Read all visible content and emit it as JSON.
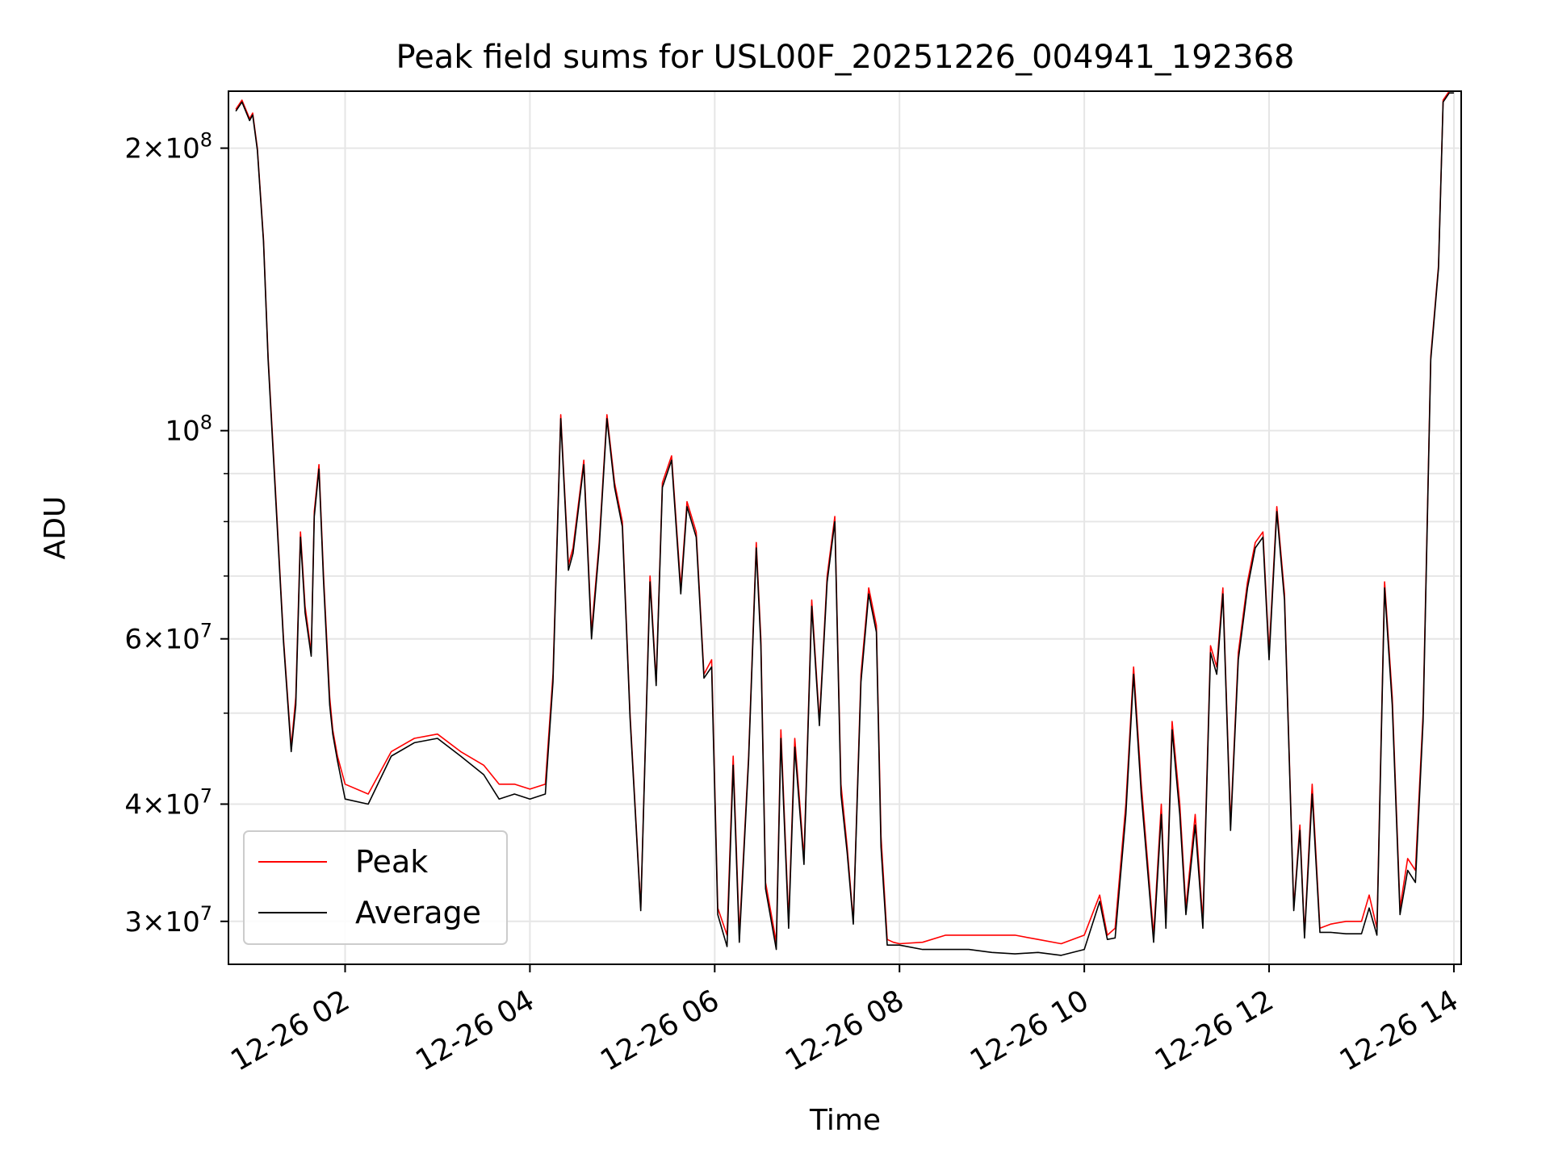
{
  "chart_data": {
    "type": "line",
    "title": "Peak field sums for USL00F_20251226_004941_192368",
    "xlabel": "Time",
    "ylabel": "ADU",
    "x_axis": {
      "kind": "datetime",
      "range": [
        "2025-12-26 00:49",
        "2025-12-26 14:00"
      ],
      "ticks": [
        "12-26 02",
        "12-26 04",
        "12-26 06",
        "12-26 08",
        "12-26 10",
        "12-26 12",
        "12-26 14"
      ],
      "tick_hours": [
        2,
        4,
        6,
        8,
        10,
        12,
        14
      ],
      "tick_rotation_deg": 30
    },
    "y_axis": {
      "scale": "log",
      "range": [
        27000000,
        230000000
      ],
      "major_ticks": [
        {
          "value": 30000000,
          "mantissa": "3",
          "exp": "7"
        },
        {
          "value": 40000000,
          "mantissa": "4",
          "exp": "7"
        },
        {
          "value": 60000000,
          "mantissa": "6",
          "exp": "7"
        },
        {
          "value": 100000000,
          "mantissa": "",
          "exp": "8"
        },
        {
          "value": 200000000,
          "mantissa": "2",
          "exp": "8"
        }
      ],
      "minor_grid": [
        50000000,
        70000000,
        80000000,
        90000000
      ]
    },
    "grid": true,
    "legend": {
      "location": "lower-left"
    },
    "series": [
      {
        "name": "Peak",
        "color": "#ff0000",
        "x": [
          "2025-12-26 00:49",
          "2025-12-26 00:53",
          "2025-12-26 00:58",
          "2025-12-26 01:00",
          "2025-12-26 01:03",
          "2025-12-26 01:07",
          "2025-12-26 01:10",
          "2025-12-26 01:15",
          "2025-12-26 01:20",
          "2025-12-26 01:25",
          "2025-12-26 01:28",
          "2025-12-26 01:31",
          "2025-12-26 01:34",
          "2025-12-26 01:38",
          "2025-12-26 01:40",
          "2025-12-26 01:43",
          "2025-12-26 01:46",
          "2025-12-26 01:50",
          "2025-12-26 01:52",
          "2025-12-26 01:55",
          "2025-12-26 02:00",
          "2025-12-26 02:15",
          "2025-12-26 02:30",
          "2025-12-26 02:45",
          "2025-12-26 03:00",
          "2025-12-26 03:15",
          "2025-12-26 03:30",
          "2025-12-26 03:40",
          "2025-12-26 03:50",
          "2025-12-26 04:00",
          "2025-12-26 04:10",
          "2025-12-26 04:15",
          "2025-12-26 04:20",
          "2025-12-26 04:25",
          "2025-12-26 04:28",
          "2025-12-26 04:35",
          "2025-12-26 04:40",
          "2025-12-26 04:45",
          "2025-12-26 04:50",
          "2025-12-26 04:55",
          "2025-12-26 05:00",
          "2025-12-26 05:05",
          "2025-12-26 05:12",
          "2025-12-26 05:18",
          "2025-12-26 05:22",
          "2025-12-26 05:26",
          "2025-12-26 05:32",
          "2025-12-26 05:38",
          "2025-12-26 05:42",
          "2025-12-26 05:48",
          "2025-12-26 05:53",
          "2025-12-26 05:58",
          "2025-12-26 06:02",
          "2025-12-26 06:08",
          "2025-12-26 06:12",
          "2025-12-26 06:16",
          "2025-12-26 06:22",
          "2025-12-26 06:27",
          "2025-12-26 06:30",
          "2025-12-26 06:33",
          "2025-12-26 06:40",
          "2025-12-26 06:43",
          "2025-12-26 06:48",
          "2025-12-26 06:52",
          "2025-12-26 06:58",
          "2025-12-26 07:03",
          "2025-12-26 07:08",
          "2025-12-26 07:13",
          "2025-12-26 07:18",
          "2025-12-26 07:22",
          "2025-12-26 07:26",
          "2025-12-26 07:30",
          "2025-12-26 07:35",
          "2025-12-26 07:40",
          "2025-12-26 07:45",
          "2025-12-26 07:48",
          "2025-12-26 07:52",
          "2025-12-26 07:56",
          "2025-12-26 08:00",
          "2025-12-26 08:15",
          "2025-12-26 08:30",
          "2025-12-26 08:45",
          "2025-12-26 09:00",
          "2025-12-26 09:15",
          "2025-12-26 09:30",
          "2025-12-26 09:45",
          "2025-12-26 10:00",
          "2025-12-26 10:10",
          "2025-12-26 10:15",
          "2025-12-26 10:20",
          "2025-12-26 10:27",
          "2025-12-26 10:32",
          "2025-12-26 10:37",
          "2025-12-26 10:45",
          "2025-12-26 10:50",
          "2025-12-26 10:53",
          "2025-12-26 10:57",
          "2025-12-26 11:02",
          "2025-12-26 11:06",
          "2025-12-26 11:12",
          "2025-12-26 11:17",
          "2025-12-26 11:22",
          "2025-12-26 11:26",
          "2025-12-26 11:30",
          "2025-12-26 11:35",
          "2025-12-26 11:40",
          "2025-12-26 11:46",
          "2025-12-26 11:51",
          "2025-12-26 11:56",
          "2025-12-26 12:00",
          "2025-12-26 12:05",
          "2025-12-26 12:10",
          "2025-12-26 12:16",
          "2025-12-26 12:20",
          "2025-12-26 12:23",
          "2025-12-26 12:28",
          "2025-12-26 12:33",
          "2025-12-26 12:40",
          "2025-12-26 12:50",
          "2025-12-26 13:00",
          "2025-12-26 13:05",
          "2025-12-26 13:10",
          "2025-12-26 13:15",
          "2025-12-26 13:20",
          "2025-12-26 13:25",
          "2025-12-26 13:30",
          "2025-12-26 13:35",
          "2025-12-26 13:40",
          "2025-12-26 13:45",
          "2025-12-26 13:50",
          "2025-12-26 13:53",
          "2025-12-26 13:57",
          "2025-12-26 14:00"
        ],
        "y": [
          220000000,
          225000000,
          215000000,
          218000000,
          200000000,
          160000000,
          120000000,
          85000000,
          60000000,
          46000000,
          52000000,
          78000000,
          65000000,
          58000000,
          82000000,
          92000000,
          70000000,
          52000000,
          48000000,
          45000000,
          42000000,
          41000000,
          45500000,
          47000000,
          47500000,
          45500000,
          44000000,
          42000000,
          42000000,
          41500000,
          42000000,
          55000000,
          104000000,
          72000000,
          75000000,
          93000000,
          61000000,
          76000000,
          104000000,
          88000000,
          80000000,
          50000000,
          31000000,
          70000000,
          54000000,
          88000000,
          94000000,
          68000000,
          84000000,
          78000000,
          55000000,
          57000000,
          31000000,
          29000000,
          45000000,
          29000000,
          45000000,
          76000000,
          60000000,
          33000000,
          28500000,
          48000000,
          30000000,
          47000000,
          35000000,
          66000000,
          49000000,
          70000000,
          81000000,
          42000000,
          36000000,
          30000000,
          55000000,
          68000000,
          62000000,
          37000000,
          28700000,
          28500000,
          28400000,
          28500000,
          29000000,
          29000000,
          29000000,
          29000000,
          28700000,
          28400000,
          29000000,
          32000000,
          29000000,
          29500000,
          40000000,
          56000000,
          42000000,
          29000000,
          40000000,
          30000000,
          49000000,
          40000000,
          31000000,
          39000000,
          30000000,
          59000000,
          56000000,
          68000000,
          38000000,
          58000000,
          69000000,
          76000000,
          78000000,
          58000000,
          83000000,
          67000000,
          31000000,
          38000000,
          29000000,
          42000000,
          29500000,
          29800000,
          30000000,
          30000000,
          32000000,
          29500000,
          69000000,
          52000000,
          31000000,
          35000000,
          34000000,
          50000000,
          120000000,
          150000000,
          225000000,
          230000000,
          230000000
        ]
      },
      {
        "name": "Average",
        "color": "#000000",
        "x": [
          "2025-12-26 00:49",
          "2025-12-26 00:53",
          "2025-12-26 00:58",
          "2025-12-26 01:00",
          "2025-12-26 01:03",
          "2025-12-26 01:07",
          "2025-12-26 01:10",
          "2025-12-26 01:15",
          "2025-12-26 01:20",
          "2025-12-26 01:25",
          "2025-12-26 01:28",
          "2025-12-26 01:31",
          "2025-12-26 01:34",
          "2025-12-26 01:38",
          "2025-12-26 01:40",
          "2025-12-26 01:43",
          "2025-12-26 01:46",
          "2025-12-26 01:50",
          "2025-12-26 01:52",
          "2025-12-26 01:55",
          "2025-12-26 02:00",
          "2025-12-26 02:15",
          "2025-12-26 02:30",
          "2025-12-26 02:45",
          "2025-12-26 03:00",
          "2025-12-26 03:15",
          "2025-12-26 03:30",
          "2025-12-26 03:40",
          "2025-12-26 03:50",
          "2025-12-26 04:00",
          "2025-12-26 04:10",
          "2025-12-26 04:15",
          "2025-12-26 04:20",
          "2025-12-26 04:25",
          "2025-12-26 04:28",
          "2025-12-26 04:35",
          "2025-12-26 04:40",
          "2025-12-26 04:45",
          "2025-12-26 04:50",
          "2025-12-26 04:55",
          "2025-12-26 05:00",
          "2025-12-26 05:05",
          "2025-12-26 05:12",
          "2025-12-26 05:18",
          "2025-12-26 05:22",
          "2025-12-26 05:26",
          "2025-12-26 05:32",
          "2025-12-26 05:38",
          "2025-12-26 05:42",
          "2025-12-26 05:48",
          "2025-12-26 05:53",
          "2025-12-26 05:58",
          "2025-12-26 06:02",
          "2025-12-26 06:08",
          "2025-12-26 06:12",
          "2025-12-26 06:16",
          "2025-12-26 06:22",
          "2025-12-26 06:27",
          "2025-12-26 06:30",
          "2025-12-26 06:33",
          "2025-12-26 06:40",
          "2025-12-26 06:43",
          "2025-12-26 06:48",
          "2025-12-26 06:52",
          "2025-12-26 06:58",
          "2025-12-26 07:03",
          "2025-12-26 07:08",
          "2025-12-26 07:13",
          "2025-12-26 07:18",
          "2025-12-26 07:22",
          "2025-12-26 07:26",
          "2025-12-26 07:30",
          "2025-12-26 07:35",
          "2025-12-26 07:40",
          "2025-12-26 07:45",
          "2025-12-26 07:48",
          "2025-12-26 07:52",
          "2025-12-26 07:56",
          "2025-12-26 08:00",
          "2025-12-26 08:15",
          "2025-12-26 08:30",
          "2025-12-26 08:45",
          "2025-12-26 09:00",
          "2025-12-26 09:15",
          "2025-12-26 09:30",
          "2025-12-26 09:45",
          "2025-12-26 10:00",
          "2025-12-26 10:10",
          "2025-12-26 10:15",
          "2025-12-26 10:20",
          "2025-12-26 10:27",
          "2025-12-26 10:32",
          "2025-12-26 10:37",
          "2025-12-26 10:45",
          "2025-12-26 10:50",
          "2025-12-26 10:53",
          "2025-12-26 10:57",
          "2025-12-26 11:02",
          "2025-12-26 11:06",
          "2025-12-26 11:12",
          "2025-12-26 11:17",
          "2025-12-26 11:22",
          "2025-12-26 11:26",
          "2025-12-26 11:30",
          "2025-12-26 11:35",
          "2025-12-26 11:40",
          "2025-12-26 11:46",
          "2025-12-26 11:51",
          "2025-12-26 11:56",
          "2025-12-26 12:00",
          "2025-12-26 12:05",
          "2025-12-26 12:10",
          "2025-12-26 12:16",
          "2025-12-26 12:20",
          "2025-12-26 12:23",
          "2025-12-26 12:28",
          "2025-12-26 12:33",
          "2025-12-26 12:40",
          "2025-12-26 12:50",
          "2025-12-26 13:00",
          "2025-12-26 13:05",
          "2025-12-26 13:10",
          "2025-12-26 13:15",
          "2025-12-26 13:20",
          "2025-12-26 13:25",
          "2025-12-26 13:30",
          "2025-12-26 13:35",
          "2025-12-26 13:40",
          "2025-12-26 13:45",
          "2025-12-26 13:50",
          "2025-12-26 13:53",
          "2025-12-26 13:57",
          "2025-12-26 14:00"
        ],
        "y": [
          219000000,
          224000000,
          214000000,
          217000000,
          199000000,
          159000000,
          119000000,
          84000000,
          59500000,
          45500000,
          51000000,
          77000000,
          64000000,
          57500000,
          81000000,
          91000000,
          69000000,
          51000000,
          47500000,
          44500000,
          40500000,
          40000000,
          45000000,
          46500000,
          47000000,
          45000000,
          43000000,
          40500000,
          41000000,
          40500000,
          41000000,
          54000000,
          103000000,
          71000000,
          74000000,
          92000000,
          60000000,
          75000000,
          103000000,
          87000000,
          79000000,
          49500000,
          30800000,
          69000000,
          53500000,
          87000000,
          93000000,
          67000000,
          83000000,
          77000000,
          54500000,
          56000000,
          30500000,
          28200000,
          44000000,
          28500000,
          44500000,
          75000000,
          59000000,
          32500000,
          28000000,
          47000000,
          29500000,
          46000000,
          34500000,
          65000000,
          48500000,
          69000000,
          80000000,
          41000000,
          35500000,
          29800000,
          54000000,
          67000000,
          61000000,
          36000000,
          28300000,
          28300000,
          28300000,
          28000000,
          28000000,
          28000000,
          27800000,
          27700000,
          27800000,
          27600000,
          28000000,
          31500000,
          28700000,
          28800000,
          39000000,
          55000000,
          41000000,
          28500000,
          39000000,
          29500000,
          48000000,
          39000000,
          30500000,
          38000000,
          29500000,
          58000000,
          55000000,
          67000000,
          37500000,
          57000000,
          68000000,
          75000000,
          77000000,
          57000000,
          82000000,
          66000000,
          30800000,
          37500000,
          28800000,
          41000000,
          29200000,
          29200000,
          29100000,
          29100000,
          31000000,
          29000000,
          68000000,
          51000000,
          30500000,
          34000000,
          33000000,
          49000000,
          119000000,
          149000000,
          224000000,
          229000000,
          229000000
        ]
      }
    ]
  }
}
